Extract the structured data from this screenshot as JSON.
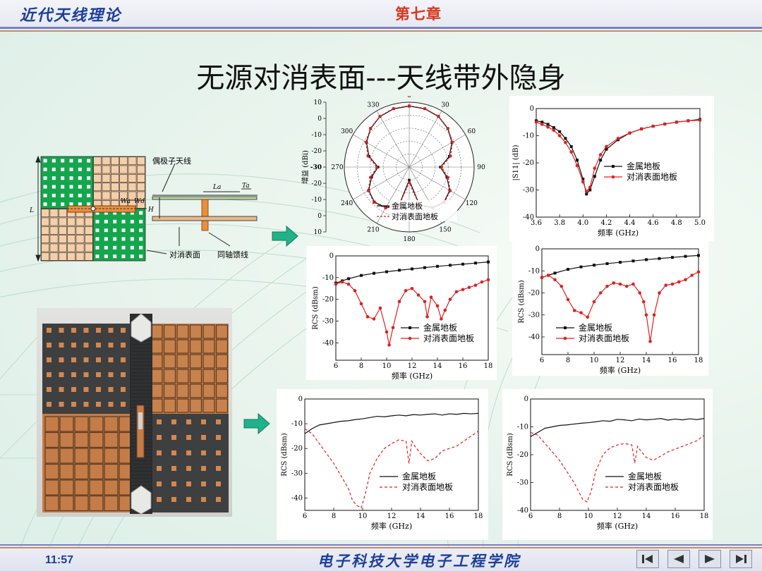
{
  "header": {
    "left": "近代天线理论",
    "chapter": "第七章"
  },
  "title": "无源对消表面---天线带外隐身",
  "footer": {
    "time": "11:57",
    "school": "电子科技大学电子工程学院"
  },
  "nav": [
    "first-icon",
    "prev-icon",
    "next-icon",
    "last-icon"
  ],
  "diagram": {
    "labels": {
      "dipole": "偶极子天线",
      "cancel_surface": "对消表面",
      "coax": "同轴馈线",
      "L": "L",
      "H": "H",
      "La": "La",
      "Ta": "Ta",
      "Wa": "Wa",
      "Wd": "Wd"
    },
    "colors": {
      "patch": "#14a64c",
      "tile": "#f4cfa9",
      "grid": "#2b2b2b"
    }
  },
  "colors": {
    "metal": "#111111",
    "cancel": "#e02020",
    "arrow": "#21b28a"
  },
  "chart_data": [
    {
      "type": "polar",
      "ylabel": "增益 (dBi)",
      "r_range": [
        -40,
        10
      ],
      "r_ticks": [
        10,
        0,
        -10,
        -20,
        -30,
        -20,
        -10,
        0,
        10
      ],
      "angle_ticks": [
        0,
        30,
        60,
        90,
        120,
        150,
        180,
        210,
        240,
        270,
        300,
        330
      ],
      "legend": [
        "金属地板",
        "对消表面地板"
      ],
      "series": [
        {
          "name": "金属地板",
          "theta": [
            0,
            15,
            30,
            45,
            60,
            75,
            90,
            105,
            120,
            135,
            150,
            165,
            180,
            195,
            210,
            225,
            240,
            255,
            270,
            285,
            300,
            315,
            330,
            345,
            360
          ],
          "r": [
            7,
            6.5,
            5,
            2,
            -2,
            -8,
            -16,
            -10,
            -4,
            -2,
            -4,
            -10,
            -30,
            -10,
            -4,
            -2,
            -4,
            -10,
            -16,
            -8,
            -2,
            2,
            5,
            6.5,
            7
          ]
        },
        {
          "name": "对消表面地板",
          "theta": [
            0,
            15,
            30,
            45,
            60,
            75,
            90,
            105,
            120,
            135,
            150,
            165,
            180,
            195,
            210,
            225,
            240,
            255,
            270,
            285,
            300,
            315,
            330,
            345,
            360
          ],
          "r": [
            7.3,
            6.8,
            5.3,
            2.3,
            -1.5,
            -7,
            -15,
            -9,
            -3.5,
            -1.5,
            -3.5,
            -9,
            -28,
            -9,
            -3.5,
            -1.5,
            -3.5,
            -9,
            -15,
            -7,
            -1.5,
            2.3,
            5.3,
            6.8,
            7.3
          ]
        }
      ]
    },
    {
      "type": "line",
      "ylabel": "|S11| (dB)",
      "xlabel": "频率 (GHz)",
      "xlim": [
        3.6,
        5.0
      ],
      "ylim": [
        -40,
        0
      ],
      "xticks": [
        3.6,
        3.8,
        4.0,
        4.2,
        4.4,
        4.6,
        4.8,
        5.0
      ],
      "yticks": [
        0,
        -10,
        -20,
        -30,
        -40
      ],
      "legend": [
        "金属地板",
        "对消表面地板"
      ],
      "series": [
        {
          "name": "金属地板",
          "x": [
            3.6,
            3.65,
            3.7,
            3.75,
            3.8,
            3.85,
            3.9,
            3.95,
            4.0,
            4.03,
            4.06,
            4.1,
            4.15,
            4.2,
            4.3,
            4.4,
            4.5,
            4.6,
            4.7,
            4.8,
            4.9,
            5.0
          ],
          "y": [
            -4.5,
            -5,
            -5.8,
            -7,
            -8.5,
            -11,
            -14,
            -19,
            -26,
            -31.5,
            -30,
            -25,
            -19,
            -15,
            -11.5,
            -9,
            -7.5,
            -6.5,
            -5.7,
            -5,
            -4.5,
            -4
          ]
        },
        {
          "name": "对消表面地板",
          "x": [
            3.6,
            3.65,
            3.7,
            3.75,
            3.8,
            3.85,
            3.9,
            3.95,
            4.0,
            4.03,
            4.06,
            4.1,
            4.15,
            4.2,
            4.3,
            4.4,
            4.5,
            4.6,
            4.7,
            4.8,
            4.9,
            5.0
          ],
          "y": [
            -5,
            -5.8,
            -6.8,
            -8,
            -10,
            -12.5,
            -16,
            -21,
            -27,
            -30.5,
            -29,
            -22,
            -17,
            -14,
            -11,
            -9,
            -7.5,
            -6.5,
            -5.7,
            -5,
            -4.5,
            -4.3
          ]
        }
      ]
    },
    {
      "type": "line",
      "ylabel": "RCS (dBsm)",
      "xlabel": "频率 (GHz)",
      "xlim": [
        6,
        18
      ],
      "ylim": [
        -48,
        0
      ],
      "xticks": [
        6,
        8,
        10,
        12,
        14,
        16,
        18
      ],
      "yticks": [
        0,
        -10,
        -20,
        -30,
        -40
      ],
      "legend": [
        "金属地板",
        "对消表面地板"
      ],
      "series": [
        {
          "name": "金属地板",
          "x": [
            6,
            6.5,
            7,
            8,
            9,
            10,
            11,
            12,
            13,
            14,
            15,
            16,
            17,
            18
          ],
          "y": [
            -12.5,
            -11.5,
            -10.5,
            -9,
            -8,
            -7.3,
            -6.6,
            -6,
            -5.4,
            -4.8,
            -4.3,
            -3.8,
            -3.3,
            -2.8
          ]
        },
        {
          "name": "对消表面地板",
          "x": [
            6,
            6.5,
            7,
            7.5,
            8,
            8.5,
            9,
            9.5,
            10,
            10.2,
            10.5,
            11,
            11.5,
            12,
            12.5,
            13,
            13.2,
            13.5,
            14,
            14.3,
            14.6,
            15,
            15.5,
            16,
            16.5,
            17,
            17.5,
            18
          ],
          "y": [
            -13,
            -12,
            -13,
            -16,
            -22,
            -28,
            -29,
            -24,
            -35,
            -41,
            -33,
            -21,
            -16,
            -15,
            -18,
            -21,
            -28,
            -19,
            -23,
            -29,
            -25,
            -20,
            -16.5,
            -15.5,
            -14.5,
            -13.5,
            -12,
            -11
          ]
        }
      ]
    },
    {
      "type": "line",
      "ylabel": "RCS (dBsm)",
      "xlabel": "频率 (GHz)",
      "xlim": [
        6,
        18
      ],
      "ylim": [
        -48,
        0
      ],
      "xticks": [
        6,
        8,
        10,
        12,
        14,
        16,
        18
      ],
      "yticks": [
        0,
        -10,
        -20,
        -30,
        -40
      ],
      "legend": [
        "金属地板",
        "对消表面地板"
      ],
      "series": [
        {
          "name": "金属地板",
          "x": [
            6,
            6.5,
            7,
            8,
            9,
            10,
            11,
            12,
            13,
            14,
            15,
            16,
            17,
            18
          ],
          "y": [
            -13,
            -12,
            -11,
            -9.3,
            -8.2,
            -7.4,
            -6.7,
            -6.1,
            -5.5,
            -4.9,
            -4.4,
            -3.9,
            -3.4,
            -3
          ]
        },
        {
          "name": "对消表面地板",
          "x": [
            6,
            6.5,
            7,
            7.5,
            8,
            8.5,
            9,
            9.5,
            10,
            10.5,
            11,
            11.5,
            12,
            12.5,
            13,
            13.5,
            13.8,
            14,
            14.3,
            14.6,
            15,
            15.5,
            16,
            16.5,
            17,
            17.5,
            18
          ],
          "y": [
            -13,
            -12,
            -14,
            -17,
            -23,
            -28,
            -29,
            -31,
            -24,
            -20,
            -17,
            -15.5,
            -16,
            -17,
            -16,
            -20,
            -24,
            -30,
            -42,
            -30,
            -20,
            -16.5,
            -16,
            -15,
            -14,
            -12,
            -10.5
          ]
        }
      ]
    },
    {
      "type": "line",
      "ylabel": "RCS (dBsm)",
      "xlabel": "频率 (GHz)",
      "xlim": [
        6,
        18
      ],
      "ylim": [
        -45,
        0
      ],
      "xticks": [
        6,
        8,
        10,
        12,
        14,
        16,
        18
      ],
      "yticks": [
        0,
        -10,
        -20,
        -30,
        -40
      ],
      "legend": [
        "金属地板",
        "对消表面地板"
      ],
      "series": [
        {
          "name": "金属地板",
          "x": [
            6,
            6.5,
            7,
            7.5,
            8,
            8.5,
            9,
            9.5,
            10,
            10.5,
            11,
            11.5,
            12,
            12.5,
            13,
            13.5,
            14,
            14.5,
            15,
            15.5,
            16,
            16.5,
            17,
            17.5,
            18
          ],
          "y": [
            -14,
            -12,
            -10.5,
            -10,
            -9.5,
            -9,
            -8.8,
            -8.3,
            -8,
            -7.5,
            -7,
            -7.2,
            -6.8,
            -6.5,
            -6.8,
            -6.3,
            -6.5,
            -6.2,
            -6,
            -6.5,
            -6,
            -6.2,
            -5.8,
            -6,
            -5.8
          ]
        },
        {
          "name": "对消表面地板",
          "x": [
            6,
            6.5,
            7,
            7.5,
            8,
            8.5,
            9,
            9.3,
            9.6,
            9.9,
            10.2,
            10.5,
            11,
            11.5,
            12,
            12.5,
            13,
            13.2,
            13.4,
            13.6,
            14,
            14.5,
            15,
            15.5,
            16,
            16.5,
            17,
            17.5,
            18
          ],
          "y": [
            -12,
            -14,
            -18,
            -22,
            -26,
            -31,
            -36,
            -41,
            -43,
            -44,
            -38,
            -30,
            -24,
            -20,
            -18,
            -16.5,
            -17,
            -26,
            -17,
            -19,
            -22,
            -25,
            -24,
            -21,
            -20,
            -19,
            -17,
            -15,
            -13
          ]
        }
      ]
    },
    {
      "type": "line",
      "ylabel": "RCS (dBsm)",
      "xlabel": "频率 (GHz)",
      "xlim": [
        6,
        18
      ],
      "ylim": [
        -40,
        0
      ],
      "xticks": [
        6,
        8,
        10,
        12,
        14,
        16,
        18
      ],
      "yticks": [
        0,
        -10,
        -20,
        -30,
        -40
      ],
      "legend": [
        "金属地板",
        "对消表面地板"
      ],
      "series": [
        {
          "name": "金属地板",
          "x": [
            6,
            6.5,
            7,
            7.5,
            8,
            8.5,
            9,
            9.5,
            10,
            10.5,
            11,
            11.5,
            12,
            12.5,
            13,
            13.5,
            14,
            14.5,
            15,
            15.5,
            16,
            16.5,
            17,
            17.5,
            18
          ],
          "y": [
            -13.5,
            -12,
            -10.5,
            -10,
            -9.5,
            -9.3,
            -9,
            -8.7,
            -8.5,
            -8.2,
            -7.8,
            -8,
            -7.3,
            -7.5,
            -7.8,
            -7.2,
            -7.5,
            -7.3,
            -7,
            -7.6,
            -7.2,
            -7.5,
            -7.1,
            -7.4,
            -7
          ]
        },
        {
          "name": "对消表面地板",
          "x": [
            6,
            6.5,
            7,
            7.5,
            8,
            8.5,
            9,
            9.3,
            9.6,
            9.9,
            10.2,
            10.5,
            11,
            11.5,
            12,
            12.5,
            13,
            13.2,
            13.4,
            13.6,
            14,
            14.5,
            15,
            15.5,
            16,
            16.5,
            17,
            17.5,
            18
          ],
          "y": [
            -12,
            -13,
            -16,
            -19,
            -22,
            -26,
            -30,
            -33,
            -36,
            -37,
            -33,
            -26,
            -20,
            -17.5,
            -16.5,
            -16,
            -16.5,
            -23,
            -17,
            -18.5,
            -21,
            -22,
            -20.5,
            -19,
            -18,
            -17,
            -16,
            -15,
            -13
          ]
        }
      ]
    }
  ]
}
